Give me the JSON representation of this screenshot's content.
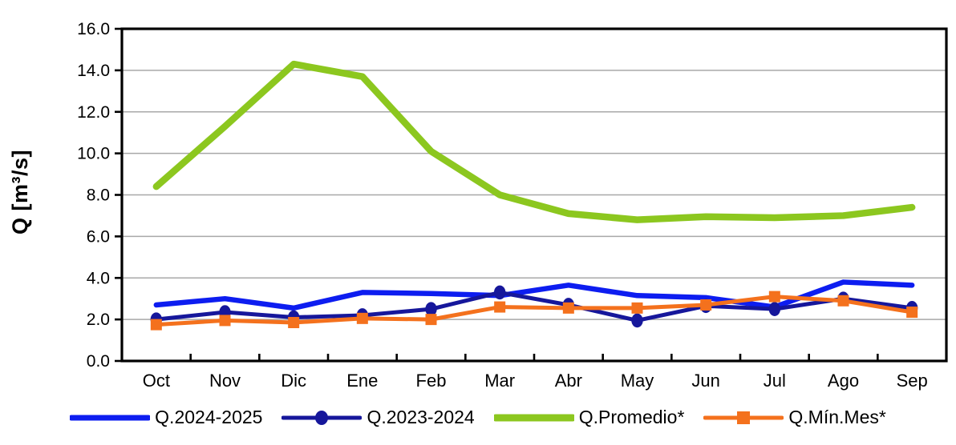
{
  "chart_data": {
    "type": "line",
    "title": "",
    "ylabel": "Q [m³/s]",
    "xlabel": "",
    "ylim": [
      0,
      16
    ],
    "ytick_step": 2,
    "ytick_decimals": 1,
    "grid": "horizontal",
    "legend_position": "bottom",
    "categories": [
      "Oct",
      "Nov",
      "Dic",
      "Ene",
      "Feb",
      "Mar",
      "Abr",
      "May",
      "Jun",
      "Jul",
      "Ago",
      "Sep"
    ],
    "series": [
      {
        "name": "Q.2024-2025",
        "color": "#0d1df0",
        "marker": "none",
        "values": [
          2.7,
          3.0,
          2.55,
          3.3,
          3.25,
          3.15,
          3.65,
          3.15,
          3.05,
          2.6,
          3.8,
          3.65
        ]
      },
      {
        "name": "Q.2023-2024",
        "color": "#16179b",
        "marker": "circle",
        "values": [
          2.0,
          2.35,
          2.1,
          2.2,
          2.5,
          3.3,
          2.7,
          1.95,
          2.65,
          2.5,
          3.0,
          2.55
        ]
      },
      {
        "name": "Q.Promedio*",
        "color": "#8cc71f",
        "marker": "none",
        "values": [
          8.4,
          11.3,
          14.3,
          13.7,
          10.1,
          8.0,
          7.1,
          6.8,
          6.95,
          6.9,
          7.0,
          7.4
        ]
      },
      {
        "name": "Q.Mín.Mes*",
        "color": "#f4711d",
        "marker": "square",
        "values": [
          1.75,
          1.95,
          1.85,
          2.05,
          2.0,
          2.6,
          2.55,
          2.55,
          2.7,
          3.1,
          2.9,
          2.35
        ]
      }
    ],
    "colors": {
      "axis": "#000000",
      "grid": "#a8a8a8",
      "tick_text": "#000000"
    }
  }
}
